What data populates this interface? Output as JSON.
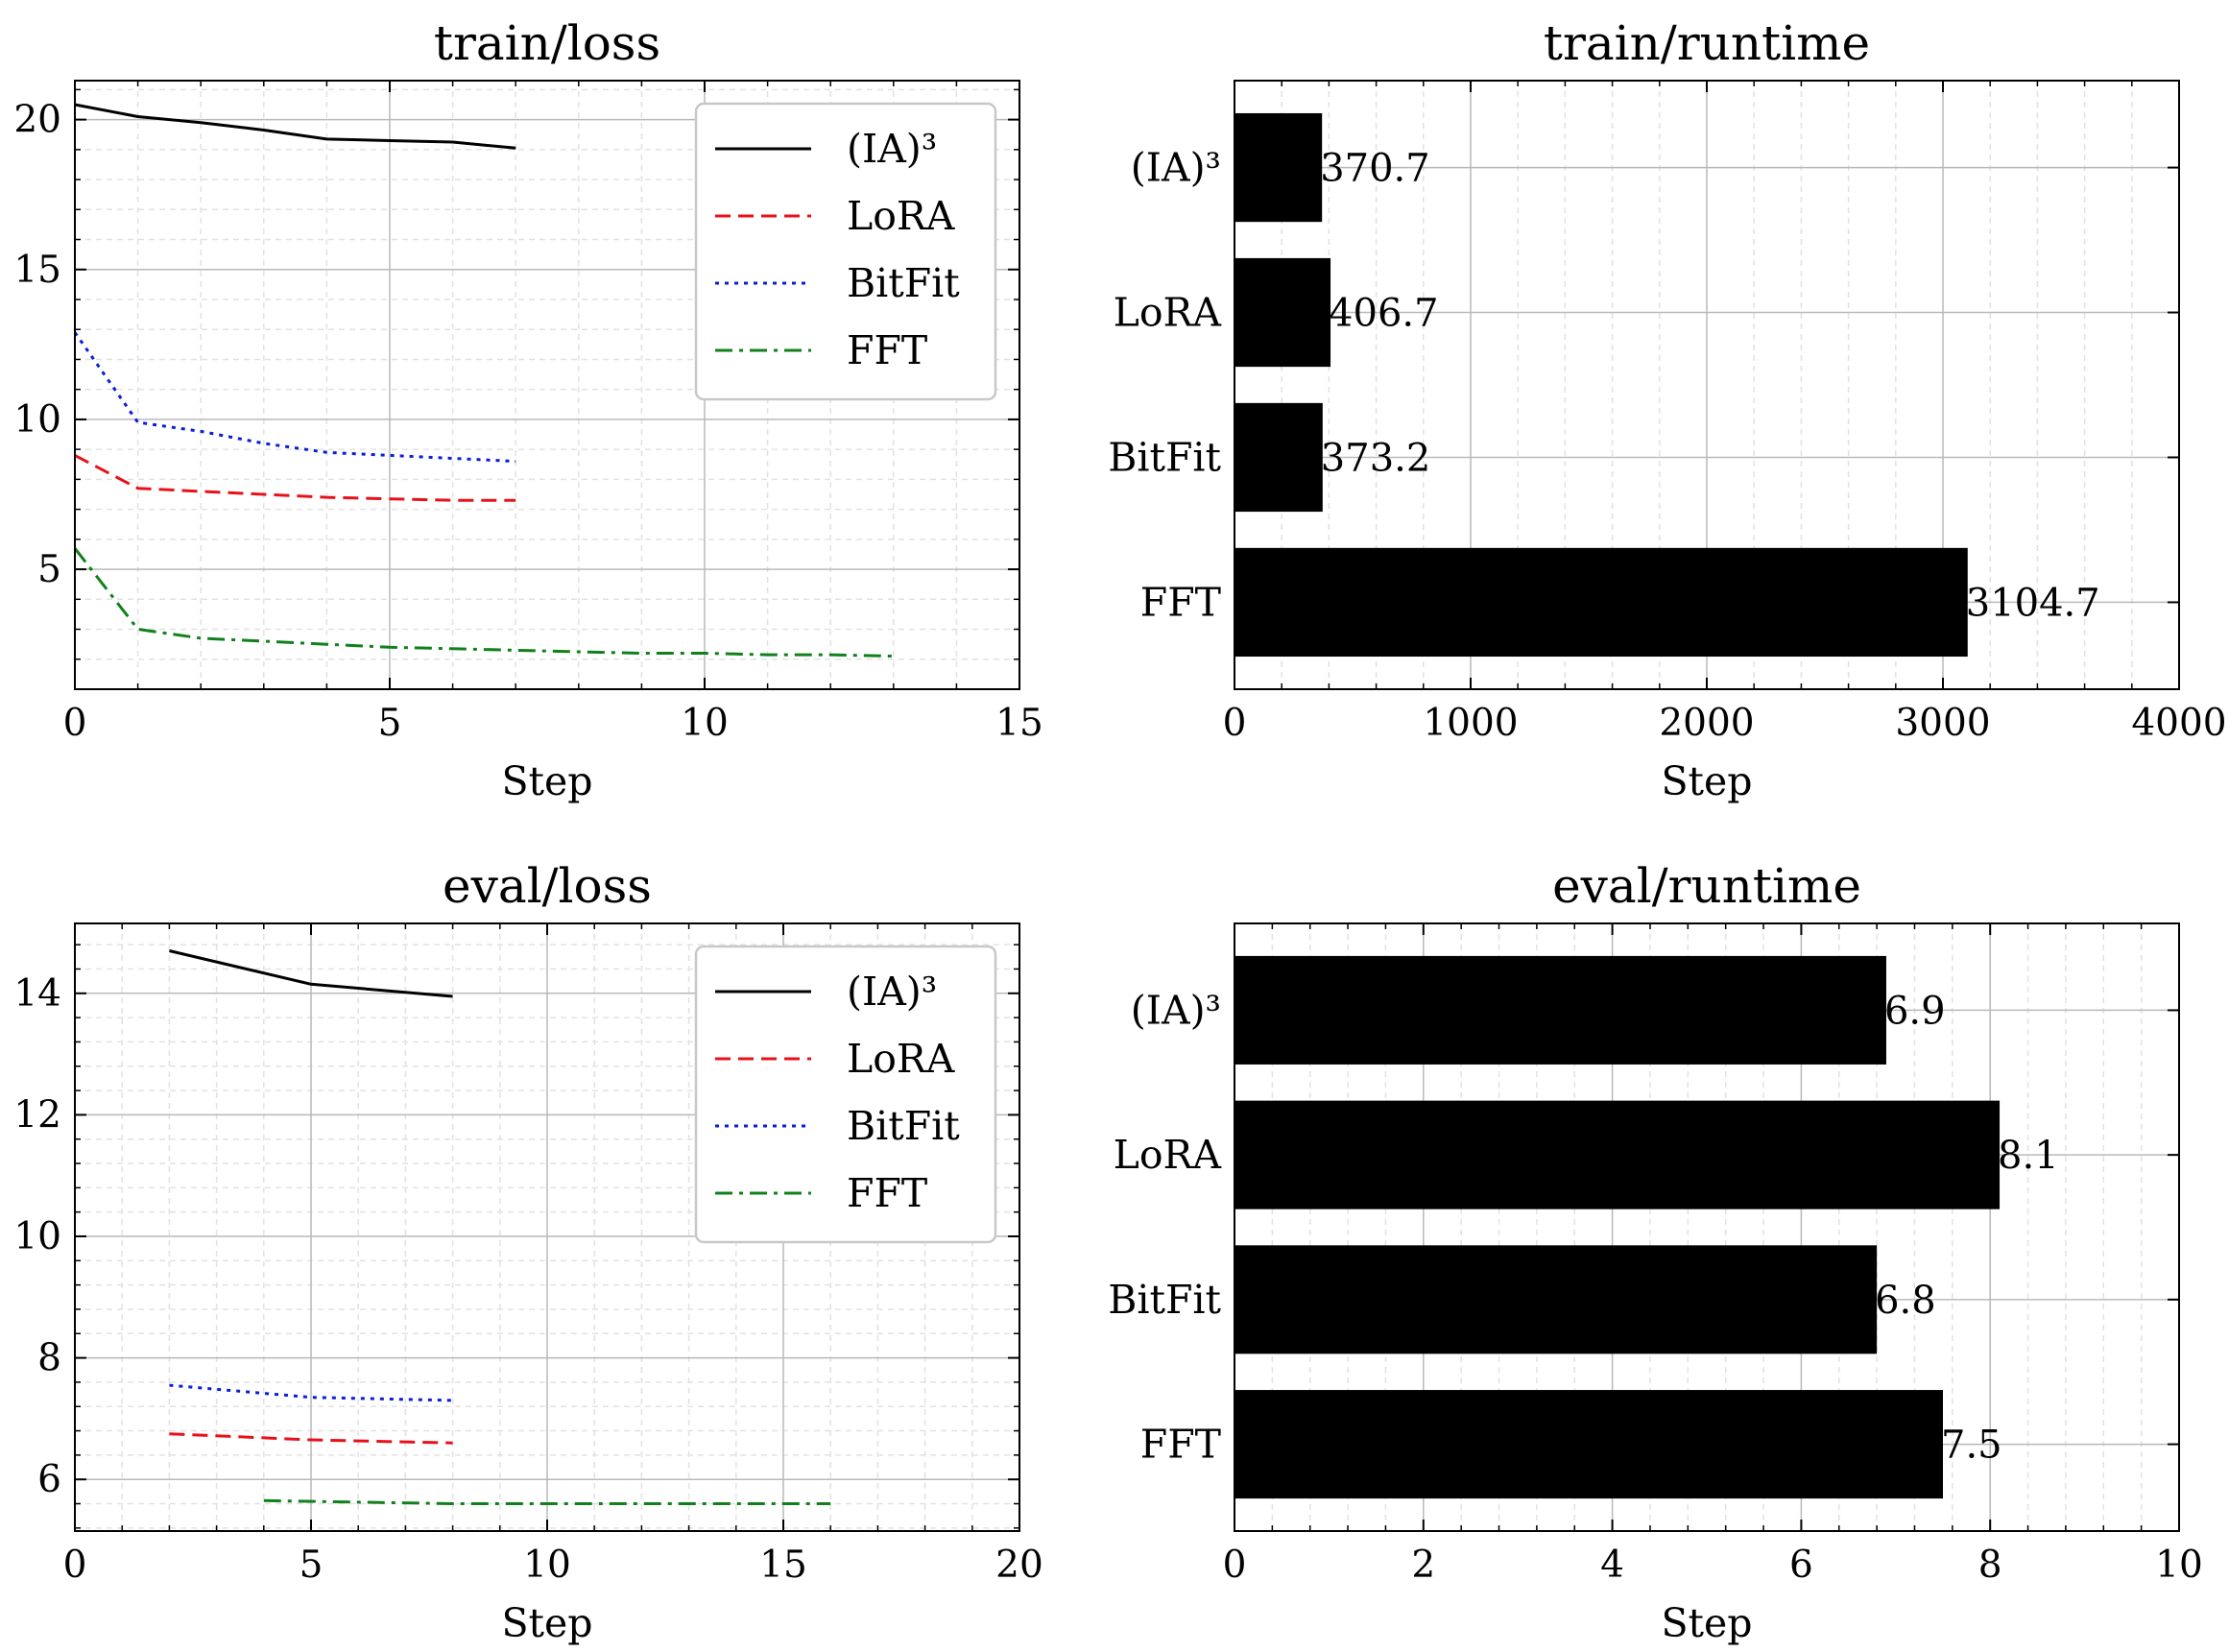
{
  "chart_data": [
    {
      "id": "train_loss",
      "type": "line",
      "title": "train/loss",
      "xlabel": "Step",
      "ylabel": "",
      "xlim": [
        0,
        15
      ],
      "ylim": [
        1.0,
        21.3
      ],
      "xticks": [
        0,
        5,
        10,
        15
      ],
      "yticks": [
        5,
        10,
        15,
        20
      ],
      "grid": true,
      "legend": "top-right",
      "series": [
        {
          "name": "(IA)³",
          "color": "#000000",
          "dash": "solid",
          "x": [
            0,
            1,
            2,
            3,
            4,
            5,
            6,
            7
          ],
          "y": [
            20.5,
            20.1,
            19.9,
            19.65,
            19.35,
            19.3,
            19.25,
            19.05
          ]
        },
        {
          "name": "LoRA",
          "color": "#e8111a",
          "dash": "dashed",
          "x": [
            0,
            1,
            2,
            3,
            4,
            5,
            6,
            7
          ],
          "y": [
            8.8,
            7.7,
            7.6,
            7.5,
            7.4,
            7.35,
            7.3,
            7.3
          ]
        },
        {
          "name": "BitFit",
          "color": "#0a1fd6",
          "dash": "dotted",
          "x": [
            0,
            1,
            2,
            3,
            4,
            5,
            6,
            7
          ],
          "y": [
            12.9,
            9.9,
            9.6,
            9.2,
            8.9,
            8.8,
            8.7,
            8.6
          ]
        },
        {
          "name": "FFT",
          "color": "#11801c",
          "dash": "dashdot",
          "x": [
            0,
            1,
            2,
            3,
            4,
            5,
            6,
            7,
            8,
            9,
            10,
            11,
            12,
            13
          ],
          "y": [
            5.7,
            3.0,
            2.7,
            2.6,
            2.5,
            2.4,
            2.35,
            2.3,
            2.25,
            2.2,
            2.2,
            2.15,
            2.15,
            2.1
          ]
        }
      ]
    },
    {
      "id": "train_runtime",
      "type": "bar",
      "orientation": "horizontal",
      "title": "train/runtime",
      "xlabel": "Step",
      "xlim": [
        0,
        4000
      ],
      "xticks": [
        0,
        1000,
        2000,
        3000,
        4000
      ],
      "grid": true,
      "categories": [
        "(IA)³",
        "LoRA",
        "BitFit",
        "FFT"
      ],
      "values": [
        370.7,
        406.7,
        373.2,
        3104.7
      ],
      "labels": [
        "370.7",
        "406.7",
        "373.2",
        "3104.7"
      ]
    },
    {
      "id": "eval_loss",
      "type": "line",
      "title": "eval/loss",
      "xlabel": "Step",
      "ylabel": "",
      "xlim": [
        0,
        20
      ],
      "ylim": [
        5.15,
        15.15
      ],
      "xticks": [
        0,
        5,
        10,
        15,
        20
      ],
      "yticks": [
        6,
        8,
        10,
        12,
        14
      ],
      "grid": true,
      "legend": "top-right",
      "series": [
        {
          "name": "(IA)³",
          "color": "#000000",
          "dash": "solid",
          "x": [
            2,
            5,
            8
          ],
          "y": [
            14.7,
            14.15,
            13.95
          ]
        },
        {
          "name": "LoRA",
          "color": "#e8111a",
          "dash": "dashed",
          "x": [
            2,
            5,
            8
          ],
          "y": [
            6.75,
            6.65,
            6.6
          ]
        },
        {
          "name": "BitFit",
          "color": "#0a1fd6",
          "dash": "dotted",
          "x": [
            2,
            5,
            8
          ],
          "y": [
            7.55,
            7.35,
            7.3
          ]
        },
        {
          "name": "FFT",
          "color": "#11801c",
          "dash": "dashdot",
          "x": [
            4,
            8,
            12,
            16
          ],
          "y": [
            5.65,
            5.6,
            5.6,
            5.6
          ]
        }
      ]
    },
    {
      "id": "eval_runtime",
      "type": "bar",
      "orientation": "horizontal",
      "title": "eval/runtime",
      "xlabel": "Step",
      "xlim": [
        0,
        10
      ],
      "xticks": [
        0,
        2,
        4,
        6,
        8,
        10
      ],
      "grid": true,
      "categories": [
        "(IA)³",
        "LoRA",
        "BitFit",
        "FFT"
      ],
      "values": [
        6.9,
        8.1,
        6.8,
        7.5
      ],
      "labels": [
        "6.9",
        "8.1",
        "6.8",
        "7.5"
      ]
    }
  ]
}
